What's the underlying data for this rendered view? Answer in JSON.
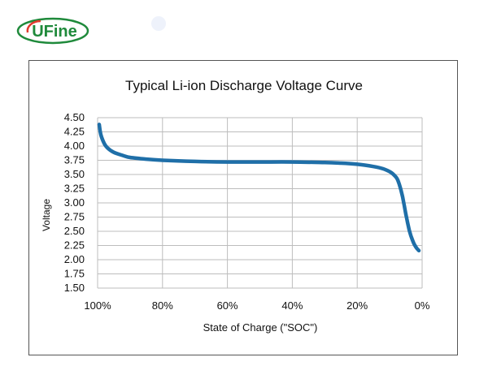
{
  "brand": {
    "logo_text": "UFine",
    "colors": {
      "green": "#1f8a3b",
      "red": "#e23a2e"
    }
  },
  "chart_data": {
    "type": "line",
    "title": "Typical Li-ion Discharge Voltage Curve",
    "xlabel": "State of Charge (\"SOC\")",
    "ylabel": "Voltage",
    "x_tick_labels": [
      "100%",
      "80%",
      "60%",
      "40%",
      "20%",
      "0%"
    ],
    "x_ticks": [
      100,
      80,
      60,
      40,
      20,
      0
    ],
    "xlim": [
      100,
      0
    ],
    "y_ticks": [
      4.5,
      4.25,
      4.0,
      3.75,
      3.5,
      3.25,
      3.0,
      2.75,
      2.5,
      2.25,
      2.0,
      1.75,
      1.5
    ],
    "y_tick_labels": [
      "4.50",
      "4.25",
      "4.00",
      "3.75",
      "3.50",
      "3.25",
      "3.00",
      "2.75",
      "2.50",
      "2.25",
      "2.00",
      "1.75",
      "1.50"
    ],
    "ylim": [
      1.5,
      4.5
    ],
    "grid": true,
    "line_color": "#1f6fa8",
    "series": [
      {
        "x": [
          99.5,
          99,
          98,
          97,
          95,
          92,
          90,
          85,
          80,
          70,
          60,
          50,
          40,
          30,
          25,
          20,
          15,
          12,
          10,
          9,
          8,
          7.5,
          7,
          6.5,
          6,
          5.5,
          5,
          4.5,
          4,
          3.5,
          3,
          2.5,
          2,
          1.5,
          1
        ],
        "y": [
          4.38,
          4.2,
          4.05,
          3.97,
          3.89,
          3.83,
          3.8,
          3.77,
          3.75,
          3.73,
          3.72,
          3.72,
          3.72,
          3.71,
          3.7,
          3.68,
          3.64,
          3.6,
          3.55,
          3.51,
          3.45,
          3.4,
          3.32,
          3.22,
          3.1,
          2.95,
          2.8,
          2.66,
          2.53,
          2.43,
          2.35,
          2.28,
          2.23,
          2.19,
          2.16
        ]
      }
    ]
  }
}
